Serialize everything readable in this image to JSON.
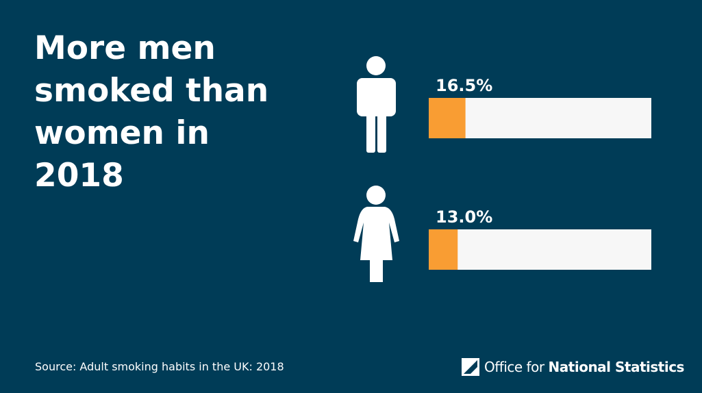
{
  "chart_data": {
    "type": "bar",
    "title": [
      "More men",
      "smoked than",
      "women in",
      "2018"
    ],
    "values": [
      16.5,
      13
    ],
    "value_labels": [
      "16.5%",
      "13.0%"
    ],
    "xlim": [
      0,
      100
    ],
    "color": "#f99d33",
    "track_color": "#f7f7f7"
  },
  "footer": {
    "source": "Source: Adult smoking habits in the UK: 2018",
    "logo_light": "Office for",
    "logo_bold": "National Statistics"
  }
}
